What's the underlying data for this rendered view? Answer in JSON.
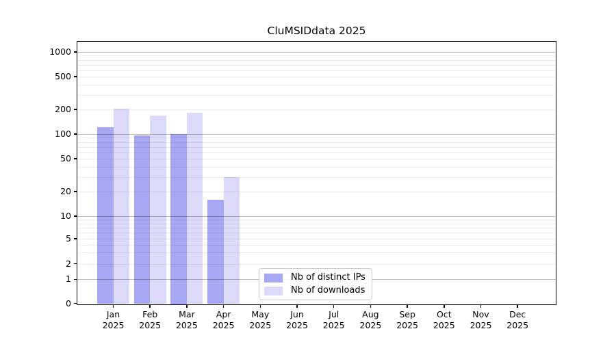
{
  "page": {
    "background": "#ffffff"
  },
  "chart_data": {
    "type": "bar",
    "title": "CluMSIDdata 2025",
    "categories": [
      "Jan",
      "Feb",
      "Mar",
      "Apr",
      "May",
      "Jun",
      "Jul",
      "Aug",
      "Sep",
      "Oct",
      "Nov",
      "Dec"
    ],
    "x_sublabel": "2025",
    "series": [
      {
        "name": "Nb of distinct IPs",
        "color": "#a7a7f4",
        "values": [
          122,
          97,
          100,
          16,
          0,
          0,
          0,
          0,
          0,
          0,
          0,
          0
        ]
      },
      {
        "name": "Nb of downloads",
        "color": "#dbdbf9",
        "values": [
          204,
          168,
          183,
          30,
          0,
          0,
          0,
          0,
          0,
          0,
          0,
          0
        ]
      }
    ],
    "yscale": "log-with-zero-baseline",
    "ylim": [
      0,
      1000
    ],
    "y_ticks": [
      0,
      1,
      2,
      5,
      10,
      20,
      50,
      100,
      200,
      500,
      1000
    ],
    "y_tick_labels": [
      "0",
      "1",
      "2",
      "5",
      "10",
      "20",
      "50",
      "100",
      "200",
      "500",
      "1000"
    ],
    "grid": true,
    "grid_on_top_of_bars": true,
    "legend_position": "lower center",
    "colors": {
      "spine": "#000000",
      "grid_major": "#bcbcbc",
      "grid_minor": "#ececec"
    }
  }
}
